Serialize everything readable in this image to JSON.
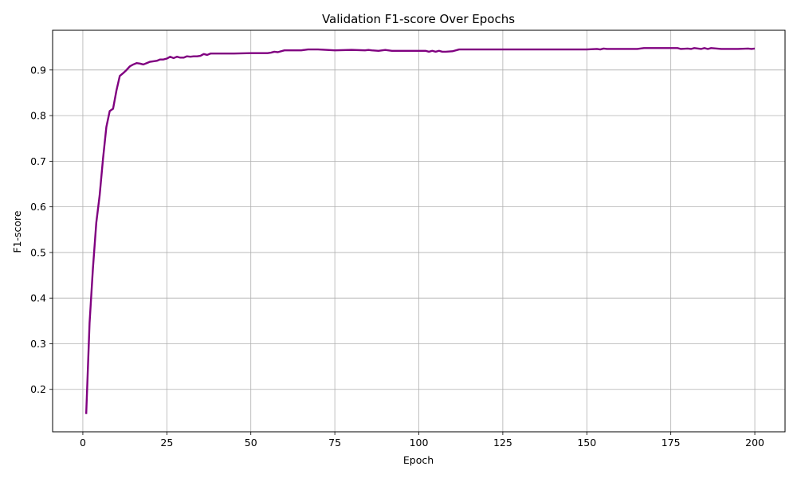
{
  "chart_data": {
    "type": "line",
    "title": "Validation F1-score Over Epochs",
    "xlabel": "Epoch",
    "ylabel": "F1-score",
    "xlim": [
      -9,
      209
    ],
    "ylim": [
      0.107,
      0.987
    ],
    "xticks": [
      0,
      25,
      50,
      75,
      100,
      125,
      150,
      175,
      200
    ],
    "yticks": [
      0.2,
      0.3,
      0.4,
      0.5,
      0.6,
      0.7,
      0.8,
      0.9
    ],
    "ytick_labels": [
      "0.2",
      "0.3",
      "0.4",
      "0.5",
      "0.6",
      "0.7",
      "0.8",
      "0.9"
    ],
    "grid": true,
    "legend": "none",
    "line_color": "#800080",
    "series": [
      {
        "x": [
          1,
          2,
          3,
          4,
          5,
          6,
          7,
          8,
          9,
          10,
          11,
          12,
          13,
          14,
          15,
          16,
          17,
          18,
          19,
          20,
          21,
          22,
          23,
          24,
          25,
          26,
          27,
          28,
          29,
          30,
          31,
          32,
          33,
          34,
          35,
          36,
          37,
          38,
          39,
          40,
          45,
          50,
          55,
          56,
          57,
          58,
          60,
          65,
          67,
          70,
          75,
          80,
          84,
          85,
          86,
          88,
          90,
          92,
          95,
          100,
          102,
          103,
          104,
          105,
          106,
          107,
          108,
          110,
          112,
          120,
          130,
          140,
          150,
          153,
          154,
          155,
          156,
          160,
          165,
          167,
          170,
          175,
          177,
          178,
          180,
          181,
          182,
          184,
          185,
          186,
          187,
          190,
          195,
          198,
          199,
          200
        ],
        "y": [
          0.146,
          0.345,
          0.465,
          0.565,
          0.625,
          0.705,
          0.775,
          0.81,
          0.815,
          0.855,
          0.887,
          0.893,
          0.9,
          0.908,
          0.912,
          0.915,
          0.914,
          0.912,
          0.915,
          0.918,
          0.919,
          0.92,
          0.923,
          0.923,
          0.925,
          0.929,
          0.926,
          0.929,
          0.927,
          0.927,
          0.93,
          0.929,
          0.93,
          0.93,
          0.931,
          0.935,
          0.933,
          0.936,
          0.936,
          0.936,
          0.936,
          0.937,
          0.937,
          0.938,
          0.94,
          0.939,
          0.943,
          0.943,
          0.945,
          0.945,
          0.943,
          0.944,
          0.943,
          0.944,
          0.943,
          0.942,
          0.944,
          0.942,
          0.942,
          0.942,
          0.942,
          0.94,
          0.942,
          0.94,
          0.942,
          0.94,
          0.94,
          0.941,
          0.945,
          0.945,
          0.945,
          0.945,
          0.945,
          0.946,
          0.945,
          0.947,
          0.946,
          0.946,
          0.946,
          0.948,
          0.948,
          0.948,
          0.948,
          0.946,
          0.947,
          0.946,
          0.948,
          0.946,
          0.948,
          0.946,
          0.948,
          0.946,
          0.946,
          0.947,
          0.946,
          0.947
        ]
      }
    ]
  }
}
